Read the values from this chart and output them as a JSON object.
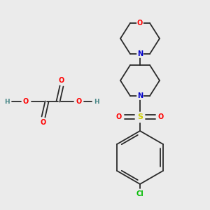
{
  "background_color": "#ebebeb",
  "bond_color": "#2a2a2a",
  "bond_width": 1.3,
  "atom_colors": {
    "O": "#ff0000",
    "N": "#0000cc",
    "S": "#cccc00",
    "Cl": "#00bb00",
    "H": "#4a8888",
    "C": "#2a2a2a"
  },
  "font_size": 7.0
}
